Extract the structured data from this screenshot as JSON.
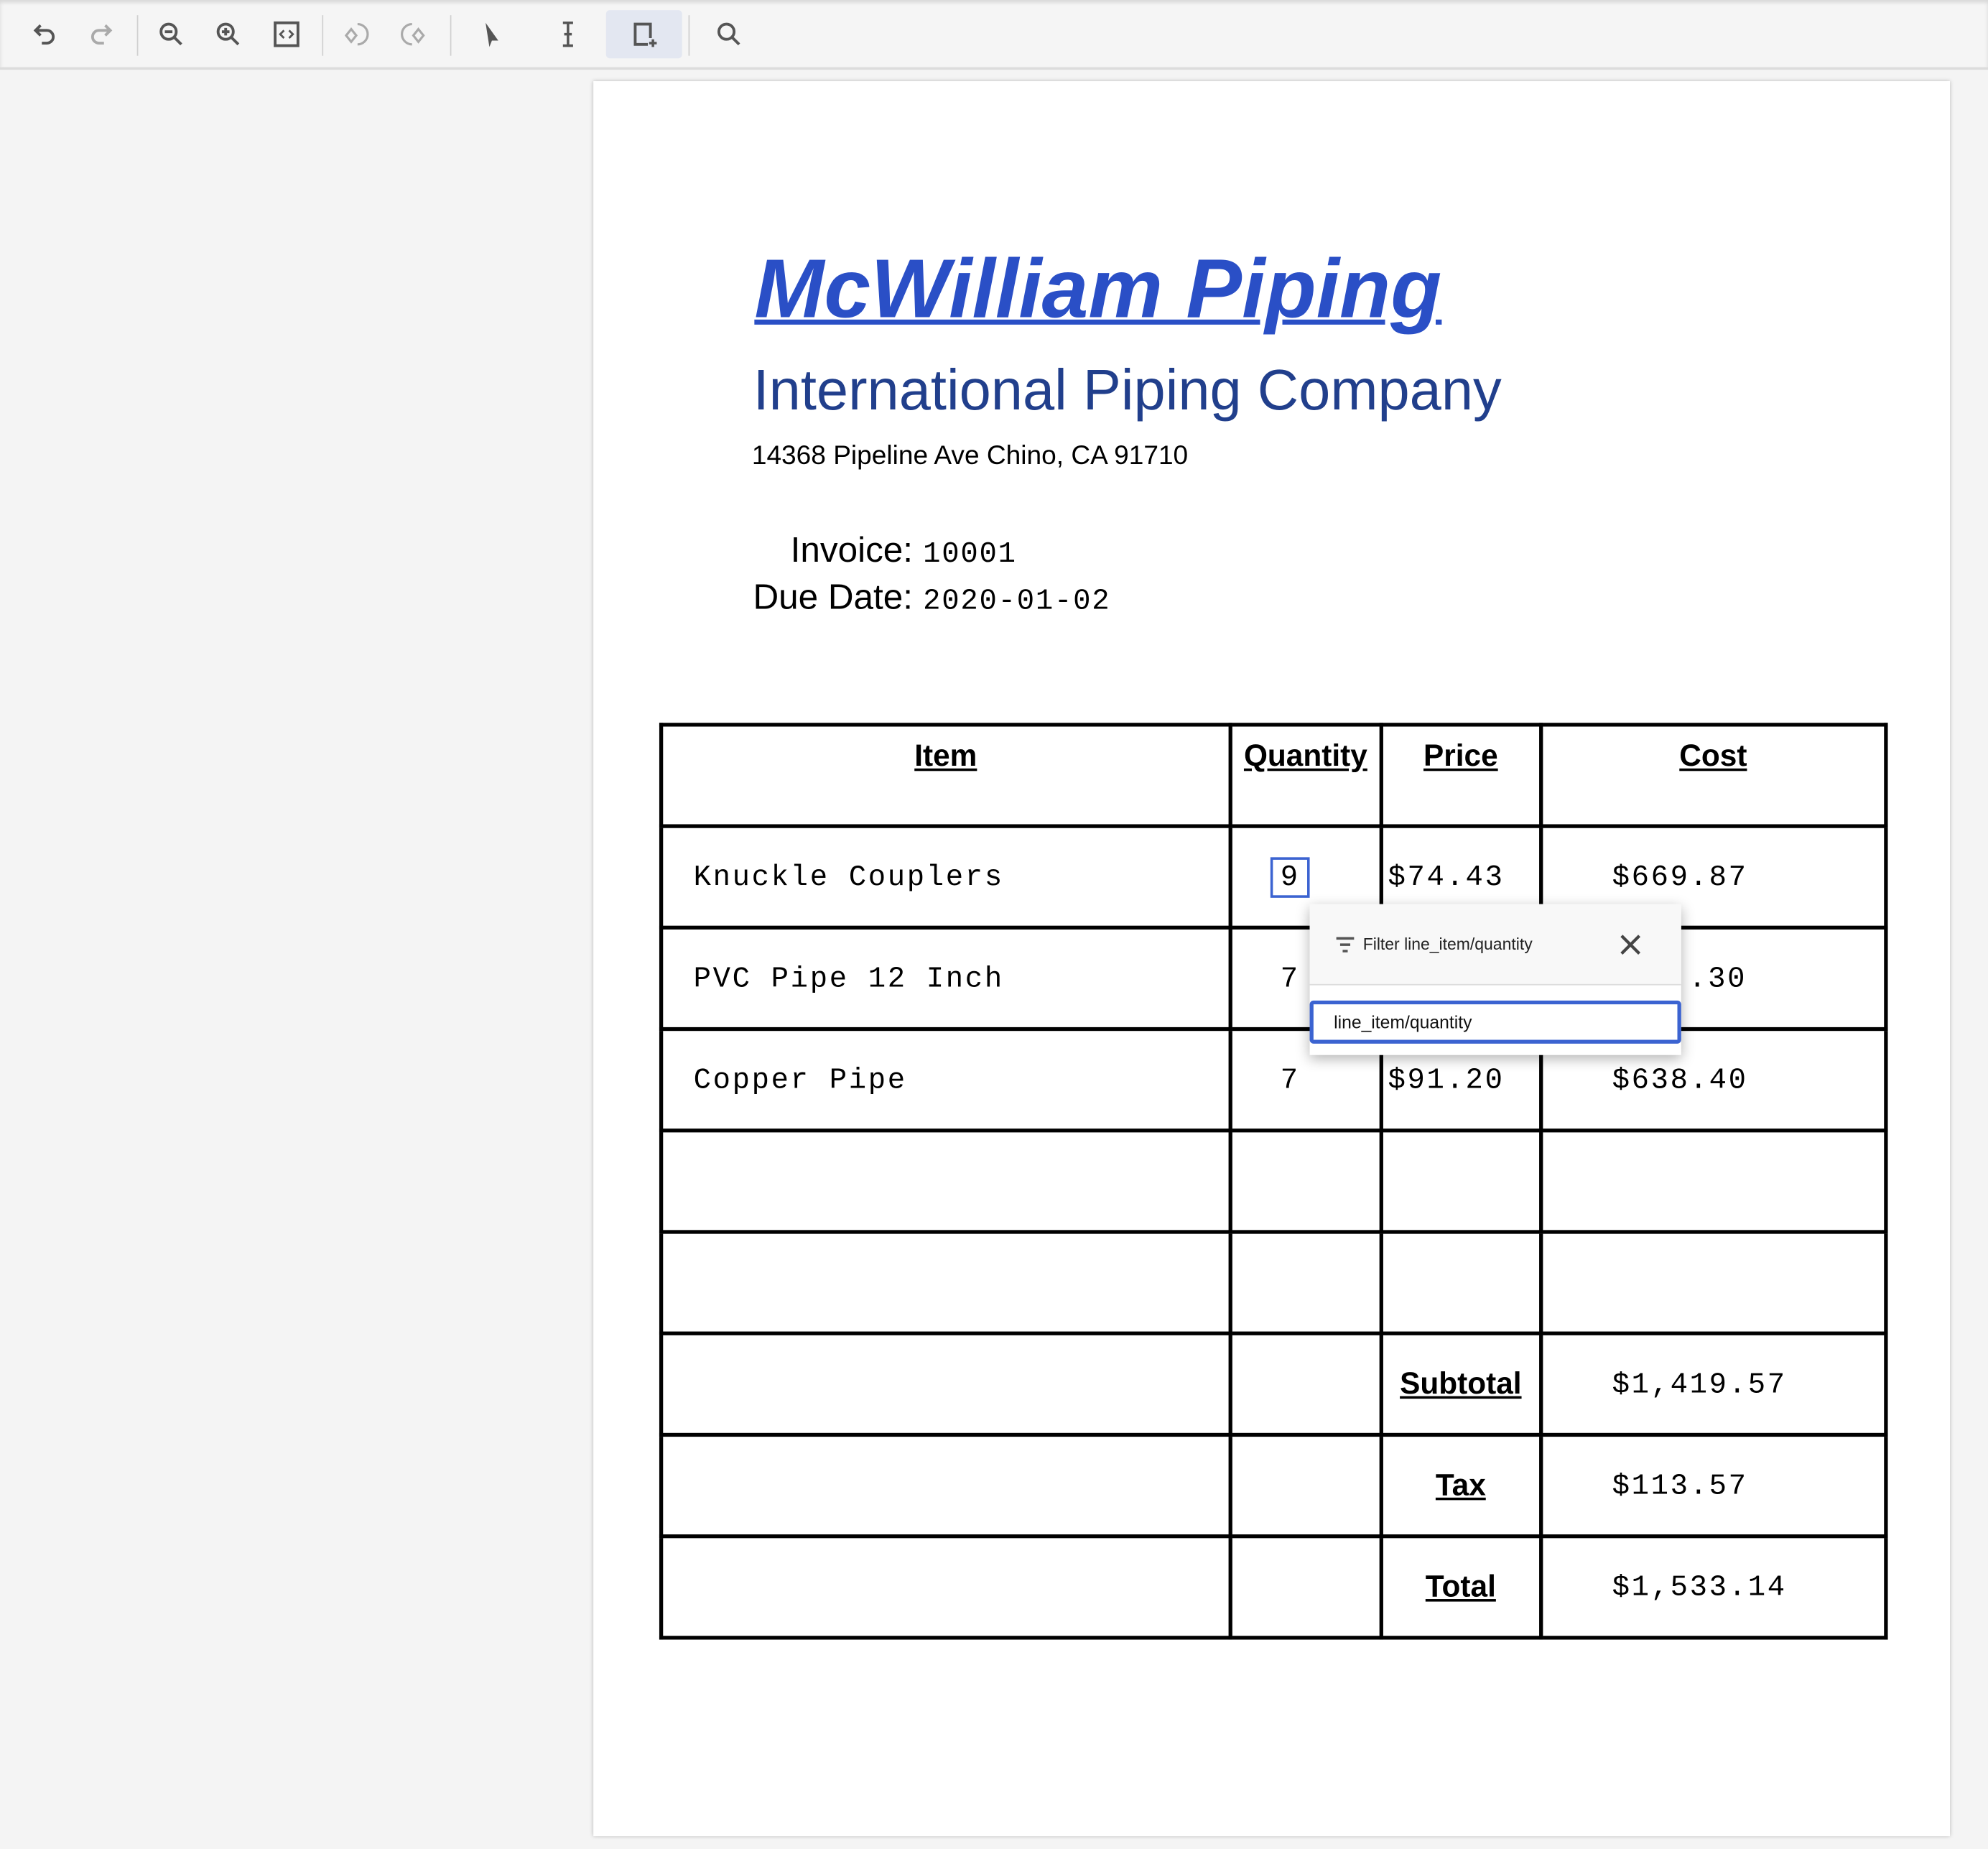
{
  "toolbar": {
    "icons": [
      "undo-icon",
      "redo-icon",
      "zoom-out-icon",
      "zoom-in-icon",
      "fit-page-icon",
      "rotate-left-icon",
      "rotate-right-icon",
      "pointer-icon",
      "text-select-icon",
      "draw-box-icon",
      "search-icon"
    ],
    "selected": "draw-box-icon"
  },
  "document": {
    "company": "McWilliam Piping",
    "subtitle": "International Piping Company",
    "address": "14368 Pipeline Ave Chino, CA 91710",
    "invoice_label": "Invoice:",
    "invoice_value": "10001",
    "due_label": "Due Date:",
    "due_value": "2020-01-02",
    "table": {
      "headers": [
        "Item",
        "Quantity",
        "Price",
        "Cost"
      ],
      "rows": [
        {
          "item": "Knuckle Couplers",
          "quantity": "9",
          "price": "$74.43",
          "cost": "$669.87"
        },
        {
          "item": "PVC Pipe 12 Inch",
          "quantity": "7",
          "price": "",
          "cost": "..30"
        },
        {
          "item": "Copper Pipe",
          "quantity": "7",
          "price": "$91.20",
          "cost": "$638.40"
        }
      ],
      "subtotal_label": "Subtotal",
      "subtotal": "$1,419.57",
      "tax_label": "Tax",
      "tax": "$113.57",
      "total_label": "Total",
      "total": "$1,533.14"
    }
  },
  "popup": {
    "title": "Filter line_item/quantity",
    "input_value": "line_item/quantity"
  },
  "colors": {
    "accent": "#3b63d1",
    "title": "#2a4fc6",
    "subtitle": "#213f8c"
  }
}
